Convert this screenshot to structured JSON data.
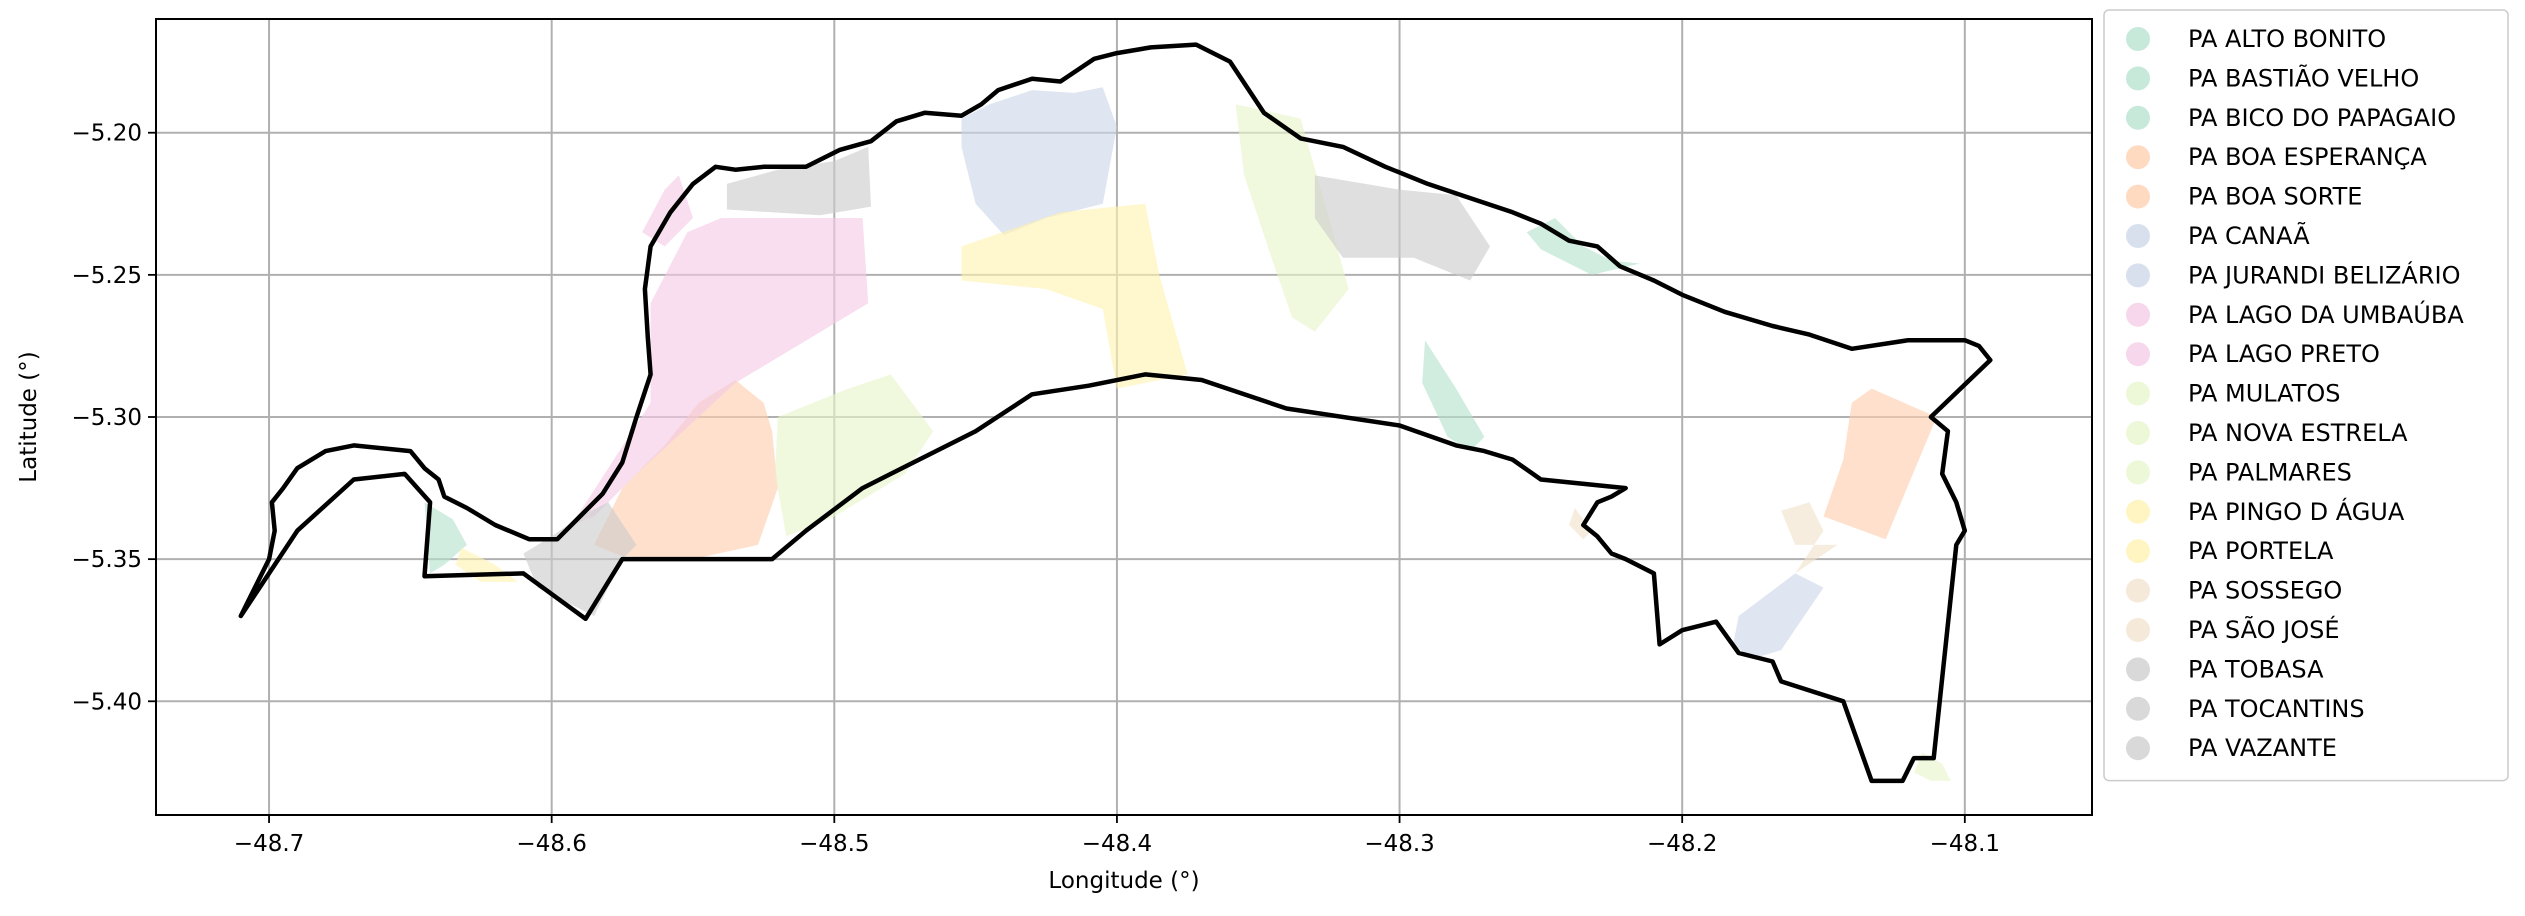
{
  "map": {
    "xlabel": "Longitude (°)",
    "ylabel": "Latitude (°)",
    "xlim": [
      -48.74,
      -48.055
    ],
    "ylim": [
      -5.44,
      -5.16
    ],
    "x_ticks": [
      {
        "value": -48.7,
        "label": "−48.7"
      },
      {
        "value": -48.6,
        "label": "−48.6"
      },
      {
        "value": -48.5,
        "label": "−48.5"
      },
      {
        "value": -48.4,
        "label": "−48.4"
      },
      {
        "value": -48.3,
        "label": "−48.3"
      },
      {
        "value": -48.2,
        "label": "−48.2"
      },
      {
        "value": -48.1,
        "label": "−48.1"
      }
    ],
    "y_ticks": [
      {
        "value": -5.2,
        "label": "−5.20"
      },
      {
        "value": -5.25,
        "label": "−5.25"
      },
      {
        "value": -5.3,
        "label": "−5.30"
      },
      {
        "value": -5.35,
        "label": "−5.35"
      },
      {
        "value": -5.4,
        "label": "−5.40"
      }
    ],
    "grid": true,
    "legend_position": "right-outside",
    "boundary_color": "#000000",
    "legend": [
      {
        "label": "PA ALTO BONITO",
        "color": "#b3e2cd"
      },
      {
        "label": "PA BASTIÃO VELHO",
        "color": "#b3e2cd"
      },
      {
        "label": "PA BICO DO PAPAGAIO",
        "color": "#b3e2cd"
      },
      {
        "label": "PA BOA ESPERANÇA",
        "color": "#fdcdac"
      },
      {
        "label": "PA BOA SORTE",
        "color": "#fdcdac"
      },
      {
        "label": "PA CANAÃ",
        "color": "#cbd5e8"
      },
      {
        "label": "PA JURANDI BELIZÁRIO",
        "color": "#cbd5e8"
      },
      {
        "label": "PA LAGO DA UMBAÚBA",
        "color": "#f4cae4"
      },
      {
        "label": "PA LAGO PRETO",
        "color": "#f4cae4"
      },
      {
        "label": "PA MULATOS",
        "color": "#e6f5c9"
      },
      {
        "label": "PA NOVA ESTRELA",
        "color": "#e6f5c9"
      },
      {
        "label": "PA PALMARES",
        "color": "#e6f5c9"
      },
      {
        "label": "PA PINGO D ÁGUA",
        "color": "#fff2ae"
      },
      {
        "label": "PA PORTELA",
        "color": "#fff2ae"
      },
      {
        "label": "PA SOSSEGO",
        "color": "#f1e2cc"
      },
      {
        "label": "PA SÃO JOSÉ",
        "color": "#f1e2cc"
      },
      {
        "label": "PA TOBASA",
        "color": "#cccccc"
      },
      {
        "label": "PA TOCANTINS",
        "color": "#cccccc"
      },
      {
        "label": "PA VAZANTE",
        "color": "#cccccc"
      }
    ],
    "parcels": [
      {
        "name": "PA ALTO BONITO",
        "color": "#b3e2cd",
        "coords": [
          [
            -48.255,
            -5.235
          ],
          [
            -48.245,
            -5.23
          ],
          [
            -48.235,
            -5.24
          ],
          [
            -48.225,
            -5.245
          ],
          [
            -48.215,
            -5.246
          ],
          [
            -48.232,
            -5.25
          ],
          [
            -48.25,
            -5.241
          ]
        ]
      },
      {
        "name": "PA BASTIÃO VELHO",
        "color": "#b3e2cd",
        "coords": [
          [
            -48.645,
            -5.33
          ],
          [
            -48.635,
            -5.336
          ],
          [
            -48.63,
            -5.345
          ],
          [
            -48.638,
            -5.352
          ],
          [
            -48.643,
            -5.355
          ]
        ]
      },
      {
        "name": "PA BICO DO PAPAGAIO",
        "color": "#b3e2cd",
        "coords": [
          [
            -48.291,
            -5.273
          ],
          [
            -48.28,
            -5.29
          ],
          [
            -48.27,
            -5.307
          ],
          [
            -48.275,
            -5.312
          ],
          [
            -48.283,
            -5.307
          ],
          [
            -48.292,
            -5.288
          ]
        ]
      },
      {
        "name": "PA BOA ESPERANÇA",
        "color": "#fdcdac",
        "coords": [
          [
            -48.535,
            -5.287
          ],
          [
            -48.525,
            -5.295
          ],
          [
            -48.522,
            -5.305
          ],
          [
            -48.52,
            -5.325
          ],
          [
            -48.527,
            -5.345
          ],
          [
            -48.55,
            -5.35
          ],
          [
            -48.575,
            -5.349
          ],
          [
            -48.585,
            -5.345
          ],
          [
            -48.575,
            -5.325
          ],
          [
            -48.56,
            -5.31
          ],
          [
            -48.548,
            -5.295
          ]
        ]
      },
      {
        "name": "PA BOA SORTE",
        "color": "#fdcdac",
        "coords": [
          [
            -48.133,
            -5.29
          ],
          [
            -48.11,
            -5.3
          ],
          [
            -48.128,
            -5.343
          ],
          [
            -48.15,
            -5.335
          ],
          [
            -48.143,
            -5.315
          ],
          [
            -48.14,
            -5.295
          ]
        ]
      },
      {
        "name": "PA CANAÃ",
        "color": "#cbd5e8",
        "coords": [
          [
            -48.455,
            -5.195
          ],
          [
            -48.445,
            -5.19
          ],
          [
            -48.43,
            -5.185
          ],
          [
            -48.415,
            -5.186
          ],
          [
            -48.405,
            -5.184
          ],
          [
            -48.4,
            -5.198
          ],
          [
            -48.405,
            -5.225
          ],
          [
            -48.425,
            -5.23
          ],
          [
            -48.44,
            -5.236
          ],
          [
            -48.45,
            -5.225
          ],
          [
            -48.455,
            -5.205
          ]
        ]
      },
      {
        "name": "PA JURANDI BELIZÁRIO",
        "color": "#cbd5e8",
        "coords": [
          [
            -48.18,
            -5.37
          ],
          [
            -48.16,
            -5.355
          ],
          [
            -48.15,
            -5.36
          ],
          [
            -48.165,
            -5.382
          ],
          [
            -48.175,
            -5.385
          ],
          [
            -48.182,
            -5.38
          ]
        ]
      },
      {
        "name": "PA LAGO DA UMBAÚBA",
        "color": "#f4cae4",
        "coords": [
          [
            -48.54,
            -5.23
          ],
          [
            -48.49,
            -5.23
          ],
          [
            -48.488,
            -5.26
          ],
          [
            -48.535,
            -5.288
          ],
          [
            -48.548,
            -5.3
          ],
          [
            -48.57,
            -5.32
          ],
          [
            -48.585,
            -5.335
          ],
          [
            -48.593,
            -5.338
          ],
          [
            -48.565,
            -5.295
          ],
          [
            -48.565,
            -5.26
          ],
          [
            -48.552,
            -5.235
          ]
        ]
      },
      {
        "name": "PA LAGO PRETO",
        "color": "#f4cae4",
        "coords": [
          [
            -48.555,
            -5.215
          ],
          [
            -48.56,
            -5.22
          ],
          [
            -48.568,
            -5.235
          ],
          [
            -48.56,
            -5.24
          ],
          [
            -48.55,
            -5.23
          ]
        ]
      },
      {
        "name": "PA MULATOS",
        "color": "#e6f5c9",
        "coords": [
          [
            -48.358,
            -5.19
          ],
          [
            -48.335,
            -5.195
          ],
          [
            -48.325,
            -5.23
          ],
          [
            -48.318,
            -5.255
          ],
          [
            -48.33,
            -5.27
          ],
          [
            -48.338,
            -5.265
          ],
          [
            -48.345,
            -5.245
          ],
          [
            -48.355,
            -5.215
          ]
        ]
      },
      {
        "name": "PA NOVA ESTRELA",
        "color": "#e6f5c9",
        "coords": [
          [
            -48.52,
            -5.3
          ],
          [
            -48.495,
            -5.29
          ],
          [
            -48.48,
            -5.285
          ],
          [
            -48.465,
            -5.305
          ],
          [
            -48.475,
            -5.32
          ],
          [
            -48.5,
            -5.335
          ],
          [
            -48.517,
            -5.342
          ],
          [
            -48.521,
            -5.32
          ]
        ]
      },
      {
        "name": "PA PALMARES",
        "color": "#e6f5c9",
        "coords": [
          [
            -48.115,
            -5.418
          ],
          [
            -48.108,
            -5.422
          ],
          [
            -48.105,
            -5.428
          ],
          [
            -48.112,
            -5.428
          ],
          [
            -48.118,
            -5.425
          ]
        ]
      },
      {
        "name": "PA PINGO D ÁGUA",
        "color": "#fff2ae",
        "coords": [
          [
            -48.455,
            -5.24
          ],
          [
            -48.42,
            -5.228
          ],
          [
            -48.39,
            -5.225
          ],
          [
            -48.385,
            -5.25
          ],
          [
            -48.375,
            -5.285
          ],
          [
            -48.4,
            -5.29
          ],
          [
            -48.405,
            -5.262
          ],
          [
            -48.425,
            -5.255
          ],
          [
            -48.455,
            -5.252
          ]
        ]
      },
      {
        "name": "PA PORTELA",
        "color": "#fff2ae",
        "coords": [
          [
            -48.632,
            -5.346
          ],
          [
            -48.62,
            -5.352
          ],
          [
            -48.612,
            -5.358
          ],
          [
            -48.625,
            -5.358
          ],
          [
            -48.634,
            -5.352
          ]
        ]
      },
      {
        "name": "PA SOSSEGO",
        "color": "#f1e2cc",
        "coords": [
          [
            -48.165,
            -5.333
          ],
          [
            -48.16,
            -5.345
          ],
          [
            -48.145,
            -5.345
          ],
          [
            -48.16,
            -5.355
          ],
          [
            -48.15,
            -5.34
          ],
          [
            -48.155,
            -5.33
          ]
        ]
      },
      {
        "name": "PA SÃO JOSÉ",
        "color": "#f1e2cc",
        "coords": [
          [
            -48.238,
            -5.332
          ],
          [
            -48.232,
            -5.34
          ],
          [
            -48.235,
            -5.343
          ],
          [
            -48.24,
            -5.338
          ]
        ]
      },
      {
        "name": "PA TOBASA",
        "color": "#cccccc",
        "coords": [
          [
            -48.538,
            -5.218
          ],
          [
            -48.52,
            -5.213
          ],
          [
            -48.5,
            -5.21
          ],
          [
            -48.488,
            -5.205
          ],
          [
            -48.487,
            -5.226
          ],
          [
            -48.505,
            -5.229
          ],
          [
            -48.538,
            -5.227
          ]
        ]
      },
      {
        "name": "PA TOCANTINS",
        "color": "#cccccc",
        "coords": [
          [
            -48.33,
            -5.215
          ],
          [
            -48.3,
            -5.22
          ],
          [
            -48.28,
            -5.222
          ],
          [
            -48.268,
            -5.24
          ],
          [
            -48.275,
            -5.252
          ],
          [
            -48.295,
            -5.244
          ],
          [
            -48.32,
            -5.244
          ],
          [
            -48.33,
            -5.23
          ]
        ]
      },
      {
        "name": "PA VAZANTE",
        "color": "#cccccc",
        "coords": [
          [
            -48.59,
            -5.335
          ],
          [
            -48.58,
            -5.33
          ],
          [
            -48.57,
            -5.345
          ],
          [
            -48.575,
            -5.35
          ],
          [
            -48.585,
            -5.37
          ],
          [
            -48.605,
            -5.36
          ],
          [
            -48.61,
            -5.348
          ],
          [
            -48.6,
            -5.342
          ]
        ]
      }
    ],
    "boundary": [
      [
        -48.71,
        -5.37
      ],
      [
        -48.706,
        -5.362
      ],
      [
        -48.7,
        -5.35
      ],
      [
        -48.698,
        -5.34
      ],
      [
        -48.699,
        -5.33
      ],
      [
        -48.695,
        -5.325
      ],
      [
        -48.69,
        -5.318
      ],
      [
        -48.68,
        -5.312
      ],
      [
        -48.67,
        -5.31
      ],
      [
        -48.66,
        -5.311
      ],
      [
        -48.65,
        -5.312
      ],
      [
        -48.645,
        -5.318
      ],
      [
        -48.64,
        -5.322
      ],
      [
        -48.638,
        -5.328
      ],
      [
        -48.63,
        -5.332
      ],
      [
        -48.62,
        -5.338
      ],
      [
        -48.608,
        -5.343
      ],
      [
        -48.598,
        -5.343
      ],
      [
        -48.59,
        -5.335
      ],
      [
        -48.582,
        -5.327
      ],
      [
        -48.575,
        -5.316
      ],
      [
        -48.57,
        -5.3
      ],
      [
        -48.565,
        -5.285
      ],
      [
        -48.566,
        -5.272
      ],
      [
        -48.567,
        -5.255
      ],
      [
        -48.565,
        -5.24
      ],
      [
        -48.558,
        -5.228
      ],
      [
        -48.55,
        -5.218
      ],
      [
        -48.542,
        -5.212
      ],
      [
        -48.535,
        -5.213
      ],
      [
        -48.525,
        -5.212
      ],
      [
        -48.51,
        -5.212
      ],
      [
        -48.498,
        -5.206
      ],
      [
        -48.487,
        -5.203
      ],
      [
        -48.478,
        -5.196
      ],
      [
        -48.468,
        -5.193
      ],
      [
        -48.455,
        -5.194
      ],
      [
        -48.448,
        -5.19
      ],
      [
        -48.442,
        -5.185
      ],
      [
        -48.43,
        -5.181
      ],
      [
        -48.42,
        -5.182
      ],
      [
        -48.408,
        -5.174
      ],
      [
        -48.4,
        -5.172
      ],
      [
        -48.388,
        -5.17
      ],
      [
        -48.372,
        -5.169
      ],
      [
        -48.36,
        -5.175
      ],
      [
        -48.348,
        -5.193
      ],
      [
        -48.335,
        -5.202
      ],
      [
        -48.32,
        -5.205
      ],
      [
        -48.305,
        -5.212
      ],
      [
        -48.29,
        -5.218
      ],
      [
        -48.275,
        -5.223
      ],
      [
        -48.26,
        -5.228
      ],
      [
        -48.25,
        -5.232
      ],
      [
        -48.24,
        -5.238
      ],
      [
        -48.23,
        -5.24
      ],
      [
        -48.222,
        -5.247
      ],
      [
        -48.21,
        -5.252
      ],
      [
        -48.2,
        -5.257
      ],
      [
        -48.185,
        -5.263
      ],
      [
        -48.168,
        -5.268
      ],
      [
        -48.155,
        -5.271
      ],
      [
        -48.14,
        -5.276
      ],
      [
        -48.12,
        -5.273
      ],
      [
        -48.1,
        -5.273
      ],
      [
        -48.095,
        -5.275
      ],
      [
        -48.091,
        -5.28
      ],
      [
        -48.112,
        -5.3
      ],
      [
        -48.106,
        -5.305
      ],
      [
        -48.108,
        -5.32
      ],
      [
        -48.103,
        -5.33
      ],
      [
        -48.1,
        -5.34
      ],
      [
        -48.103,
        -5.345
      ],
      [
        -48.111,
        -5.42
      ],
      [
        -48.118,
        -5.42
      ],
      [
        -48.122,
        -5.428
      ],
      [
        -48.133,
        -5.428
      ],
      [
        -48.143,
        -5.4
      ],
      [
        -48.165,
        -5.393
      ],
      [
        -48.168,
        -5.386
      ],
      [
        -48.18,
        -5.383
      ],
      [
        -48.188,
        -5.372
      ],
      [
        -48.2,
        -5.375
      ],
      [
        -48.208,
        -5.38
      ],
      [
        -48.21,
        -5.355
      ],
      [
        -48.22,
        -5.35
      ],
      [
        -48.225,
        -5.348
      ],
      [
        -48.23,
        -5.342
      ],
      [
        -48.235,
        -5.338
      ],
      [
        -48.23,
        -5.33
      ],
      [
        -48.225,
        -5.328
      ],
      [
        -48.22,
        -5.325
      ],
      [
        -48.25,
        -5.322
      ],
      [
        -48.26,
        -5.315
      ],
      [
        -48.27,
        -5.312
      ],
      [
        -48.28,
        -5.31
      ],
      [
        -48.3,
        -5.303
      ],
      [
        -48.34,
        -5.297
      ],
      [
        -48.37,
        -5.287
      ],
      [
        -48.39,
        -5.285
      ],
      [
        -48.41,
        -5.289
      ],
      [
        -48.43,
        -5.292
      ],
      [
        -48.45,
        -5.305
      ],
      [
        -48.47,
        -5.315
      ],
      [
        -48.49,
        -5.325
      ],
      [
        -48.51,
        -5.34
      ],
      [
        -48.522,
        -5.35
      ],
      [
        -48.56,
        -5.35
      ],
      [
        -48.575,
        -5.35
      ],
      [
        -48.588,
        -5.371
      ],
      [
        -48.61,
        -5.355
      ],
      [
        -48.645,
        -5.356
      ],
      [
        -48.643,
        -5.33
      ],
      [
        -48.652,
        -5.32
      ],
      [
        -48.67,
        -5.322
      ],
      [
        -48.69,
        -5.34
      ],
      [
        -48.71,
        -5.37
      ]
    ]
  }
}
